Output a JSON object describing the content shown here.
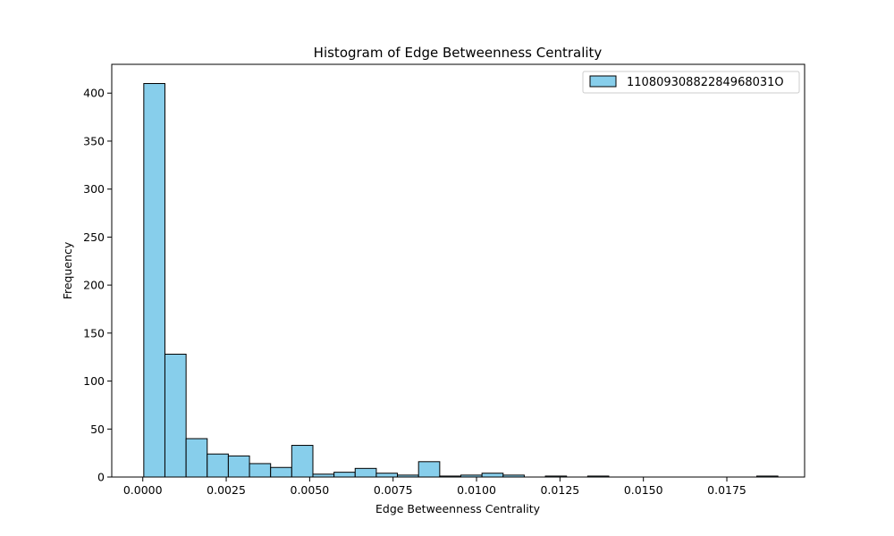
{
  "chart_data": {
    "type": "bar",
    "title": "Histogram of Edge Betweenness Centrality",
    "xlabel": "Edge Betweenness Centrality",
    "ylabel": "Frequency",
    "xlim": [
      -0.00093,
      0.01983
    ],
    "ylim": [
      0,
      430
    ],
    "x_ticks": [
      0.0,
      0.0025,
      0.005,
      0.0075,
      0.01,
      0.0125,
      0.015,
      0.0175
    ],
    "x_tick_labels": [
      "0.0000",
      "0.0025",
      "0.0050",
      "0.0075",
      "0.0100",
      "0.0125",
      "0.0150",
      "0.0175"
    ],
    "y_ticks": [
      0,
      50,
      100,
      150,
      200,
      250,
      300,
      350,
      400
    ],
    "y_tick_labels": [
      "0",
      "50",
      "100",
      "150",
      "200",
      "250",
      "300",
      "350",
      "400"
    ],
    "bin_edges": [
      3e-05,
      0.000663,
      0.001297,
      0.00193,
      0.002563,
      0.003197,
      0.00383,
      0.004463,
      0.005097,
      0.00573,
      0.006363,
      0.006997,
      0.00763,
      0.008263,
      0.008897,
      0.00953,
      0.010163,
      0.010797,
      0.01143,
      0.012063,
      0.012697,
      0.01333,
      0.013963,
      0.014597,
      0.01523,
      0.015863,
      0.016497,
      0.01713,
      0.017763,
      0.018397,
      0.01903
    ],
    "series": [
      {
        "name": "11080930882284968031O",
        "values": [
          410,
          128,
          40,
          24,
          22,
          14,
          10,
          33,
          3,
          5,
          9,
          4,
          2,
          16,
          1,
          2,
          4,
          2,
          0,
          1,
          0,
          1,
          0,
          0,
          0,
          0,
          0,
          0,
          0,
          1
        ]
      }
    ],
    "colors": {
      "bar_fill": "#87ceeb",
      "bar_edge": "#000000"
    },
    "legend_position": "top-right",
    "grid": false
  }
}
